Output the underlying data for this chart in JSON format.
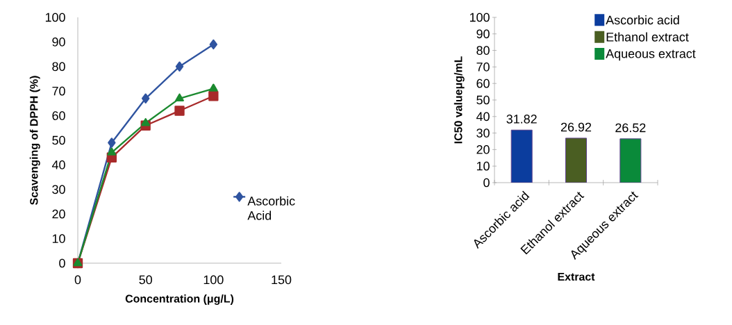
{
  "chart_data": [
    {
      "type": "line",
      "xlabel": "Concentration  (μg/L)",
      "ylabel": "Scavenging of DPPH (%)",
      "x": [
        0,
        25,
        50,
        75,
        100
      ],
      "series": [
        {
          "name": "Ascorbic Acid",
          "color": "#2f54a0",
          "marker": "diamond",
          "values": [
            0,
            49,
            67,
            80,
            89
          ]
        },
        {
          "color": "#a82a2a",
          "marker": "square",
          "values": [
            0,
            43,
            56,
            62,
            68
          ]
        },
        {
          "color": "#1b8a2f",
          "marker": "triangle",
          "values": [
            0,
            45,
            57,
            67,
            71
          ]
        }
      ],
      "xlim": [
        0,
        150
      ],
      "xticks": [
        0,
        50,
        100,
        150
      ],
      "ylim": [
        0,
        100
      ],
      "yticks": [
        0,
        10,
        20,
        30,
        40,
        50,
        60,
        70,
        80,
        90,
        100
      ],
      "legend": "right"
    },
    {
      "type": "bar",
      "xlabel": "Extract",
      "ylabel": "IC50 valueμg/mL",
      "categories": [
        "Ascorbic acid",
        "Ethanol extract",
        "Aqueous extract"
      ],
      "series": [
        {
          "name": "Ascorbic acid",
          "color": "#0b3d9e",
          "values": [
            31.82,
            null,
            null
          ]
        },
        {
          "name": "Ethanol extract",
          "color": "#4a5e22",
          "values": [
            null,
            26.92,
            null
          ]
        },
        {
          "name": "Aqueous extract",
          "color": "#0a8a3a",
          "values": [
            null,
            null,
            26.52
          ]
        }
      ],
      "data_labels": true,
      "legend": "top right",
      "ylim": [
        0,
        100
      ],
      "yticks": [
        0,
        10,
        20,
        30,
        40,
        50,
        60,
        70,
        80,
        90,
        100
      ]
    }
  ]
}
